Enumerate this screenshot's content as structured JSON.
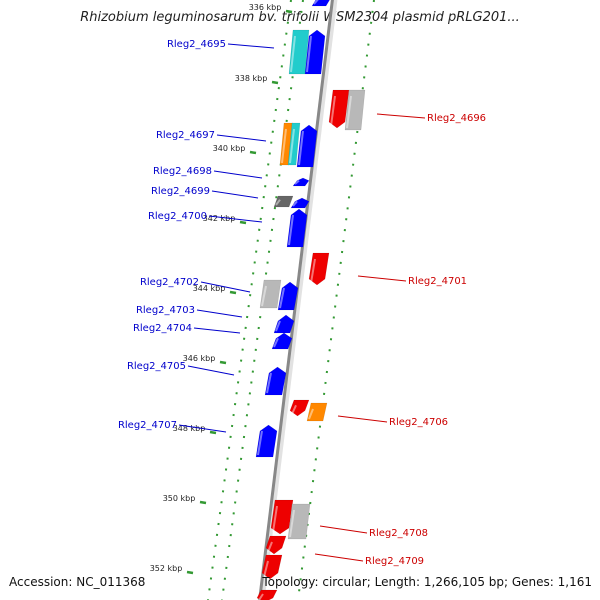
{
  "title": "Rhizobium leguminosarum bv. trifolii WSM2304 plasmid pRLG201...",
  "footer": {
    "accession": "Accession: NC_011368",
    "summary": "Topology: circular; Length: 1,266,105 bp; Genes: 1,161"
  },
  "kbp_ticks": [
    {
      "label": "336 kbp"
    },
    {
      "label": "338 kbp"
    },
    {
      "label": "340 kbp"
    },
    {
      "label": "342 kbp"
    },
    {
      "label": "344 kbp"
    },
    {
      "label": "346 kbp"
    },
    {
      "label": "348 kbp"
    },
    {
      "label": "350 kbp"
    },
    {
      "label": "352 kbp"
    }
  ],
  "gene_labels_left": [
    {
      "label": "Rleg2_4695"
    },
    {
      "label": "Rleg2_4697"
    },
    {
      "label": "Rleg2_4698"
    },
    {
      "label": "Rleg2_4699"
    },
    {
      "label": "Rleg2_4700"
    },
    {
      "label": "Rleg2_4702"
    },
    {
      "label": "Rleg2_4703"
    },
    {
      "label": "Rleg2_4704"
    },
    {
      "label": "Rleg2_4705"
    },
    {
      "label": "Rleg2_4707"
    }
  ],
  "gene_labels_right": [
    {
      "label": "Rleg2_4696"
    },
    {
      "label": "Rleg2_4701"
    },
    {
      "label": "Rleg2_4706"
    },
    {
      "label": "Rleg2_4708"
    },
    {
      "label": "Rleg2_4709"
    }
  ],
  "colors": {
    "forward_cds": "#0000ff",
    "reverse_cds": "#ee0000",
    "gray_feature": "#b8b8b8",
    "cyan_feature": "#22cccc",
    "orange_feature": "#ff8800",
    "dark_feature": "#666666",
    "backbone": "#888888",
    "dot_track": "#339933",
    "left_label": "#0000cc",
    "right_label": "#cc0000"
  }
}
